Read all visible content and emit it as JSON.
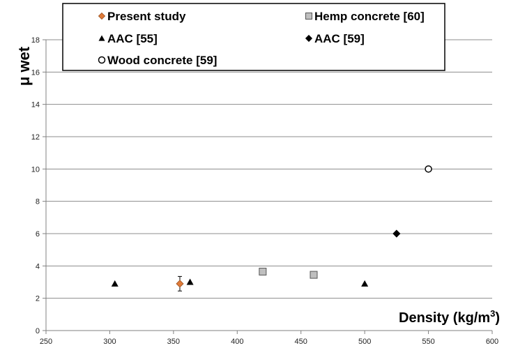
{
  "chart_data": {
    "type": "scatter",
    "xlabel_main": "Density (kg/m",
    "xlabel_sup": "3",
    "xlabel_close": ")",
    "ylabel": "μ wet",
    "xlim": [
      250,
      600
    ],
    "ylim": [
      0,
      18
    ],
    "x_ticks": [
      250,
      300,
      350,
      400,
      450,
      500,
      550,
      600
    ],
    "y_ticks": [
      0,
      2,
      4,
      6,
      8,
      10,
      12,
      14,
      16,
      18
    ],
    "grid": "horizontal",
    "legend_position": "top-left",
    "series": [
      {
        "name": "Present study",
        "marker": "diamond",
        "color": "#E07B39",
        "points": [
          {
            "x": 355,
            "y": 2.9,
            "err": 0.45
          }
        ]
      },
      {
        "name": "Hemp concrete [60]",
        "marker": "square",
        "color": "#BFBFBF",
        "points": [
          {
            "x": 420,
            "y": 3.65
          },
          {
            "x": 460,
            "y": 3.45
          }
        ]
      },
      {
        "name": "AAC [55]",
        "marker": "triangle",
        "color": "#000000",
        "points": [
          {
            "x": 304,
            "y": 2.9
          },
          {
            "x": 363,
            "y": 3.0
          },
          {
            "x": 500,
            "y": 2.9
          }
        ]
      },
      {
        "name": "AAC [59]",
        "marker": "diamond",
        "color": "#000000",
        "points": [
          {
            "x": 525,
            "y": 6.0
          }
        ]
      },
      {
        "name": "Wood concrete [59]",
        "marker": "circle-open",
        "color": "#000000",
        "points": [
          {
            "x": 550,
            "y": 10.0
          }
        ]
      }
    ]
  }
}
